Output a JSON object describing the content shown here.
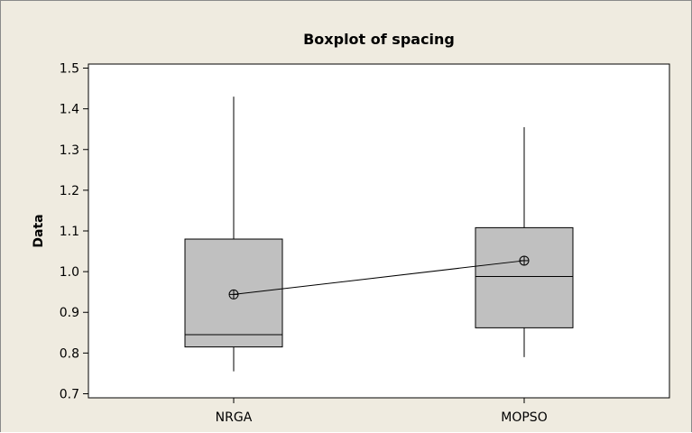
{
  "chart_data": {
    "type": "boxplot",
    "title": "Boxplot of spacing",
    "ylabel": "Data",
    "xlabel": "",
    "ylim": [
      0.69,
      1.51
    ],
    "yticks": [
      0.7,
      0.8,
      0.9,
      1.0,
      1.1,
      1.2,
      1.3,
      1.4,
      1.5
    ],
    "ytick_labels": [
      "0.7",
      "0.8",
      "0.9",
      "1.0",
      "1.1",
      "1.2",
      "1.3",
      "1.4",
      "1.5"
    ],
    "categories": [
      "NRGA",
      "MOPSO"
    ],
    "boxes": [
      {
        "category": "NRGA",
        "min": 0.755,
        "q1": 0.815,
        "median": 0.845,
        "q3": 1.08,
        "max": 1.43,
        "mean": 0.944
      },
      {
        "category": "MOPSO",
        "min": 0.79,
        "q1": 0.862,
        "median": 0.988,
        "q3": 1.108,
        "max": 1.355,
        "mean": 1.027
      }
    ],
    "mean_line": true,
    "grid": false,
    "colors": {
      "box_fill": "#c0c0c0",
      "stroke": "#000000",
      "figure_bg": "#efebe0",
      "plot_bg": "#ffffff"
    }
  }
}
